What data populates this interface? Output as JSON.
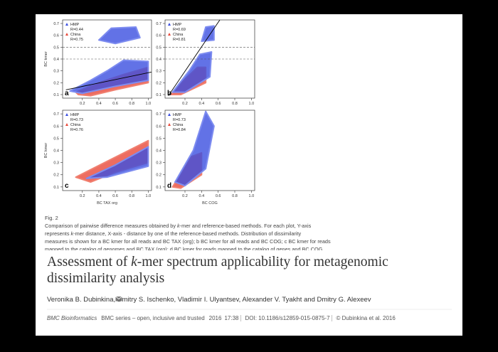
{
  "figure": {
    "xlim": [
      -0.04,
      1.04
    ],
    "ylim": [
      0.07,
      0.73
    ],
    "xticks": [
      0.2,
      0.4,
      0.6,
      0.8,
      {
        "value": 1,
        "label": "1.0"
      }
    ],
    "yticks": [
      0.1,
      0.2,
      0.3,
      0.4,
      0.5,
      0.6,
      0.7
    ],
    "y_label": "BC kmer",
    "panels": [
      {
        "letter": "a",
        "legend": [
          {
            "name": "HMP",
            "r": "R=0.44"
          },
          {
            "name": "China",
            "r": "R=0.75"
          }
        ]
      },
      {
        "letter": "b",
        "legend": [
          {
            "name": "HMP",
            "r": "R=0.69"
          },
          {
            "name": "China",
            "r": "R=0.81"
          }
        ]
      },
      {
        "letter": "c",
        "x_label": "BC TAX org",
        "legend": [
          {
            "name": "HMP",
            "r": "R=0.73"
          },
          {
            "name": "China",
            "r": "R=0.76"
          }
        ]
      },
      {
        "letter": "d",
        "x_label": "BC COG",
        "legend": [
          {
            "name": "HMP",
            "r": "R=0.73"
          },
          {
            "name": "China",
            "r": "R=0.84"
          }
        ]
      }
    ]
  },
  "caption": {
    "label": "Fig. 2",
    "lines": [
      [
        "Comparison of pairwise difference measures obtained by ",
        "k",
        "-mer and reference-based methods. For each plot, Y-axis"
      ],
      [
        "represents ",
        "k",
        "-mer distance, X-axis - distance by one of the reference-based methods. Distribution of dissimilarity"
      ],
      [
        "measures is shown for a BC kmer for all reads and BC TAX (org); b BC kmer for all reads and BC COG; c BC kmer for reads"
      ],
      [
        "mapped to the catalog of genomes and BC TAX (org); d BC kmer for reads mapped to the catalog of genes and BC COG"
      ]
    ]
  },
  "title_lines": [
    [
      "Assessment of ",
      "k",
      "-mer spectrum applicability for metagenomic"
    ],
    [
      "dissimilarity analysis"
    ]
  ],
  "authors": {
    "first": "Veronika B. Dubinkina",
    "rest": ", Dmitry S. Ischenko, Vladimir I. Ulyantsev, Alexander V. Tyakht and Dmitry G. Alexeev"
  },
  "footer": [
    "BMC Bioinformatics",
    "BMC series – open, inclusive and trusted",
    "2016",
    "17:38",
    "DOI: 10.1186/s12859-015-0875-7",
    "© Dubinkina et al. 2016"
  ]
}
